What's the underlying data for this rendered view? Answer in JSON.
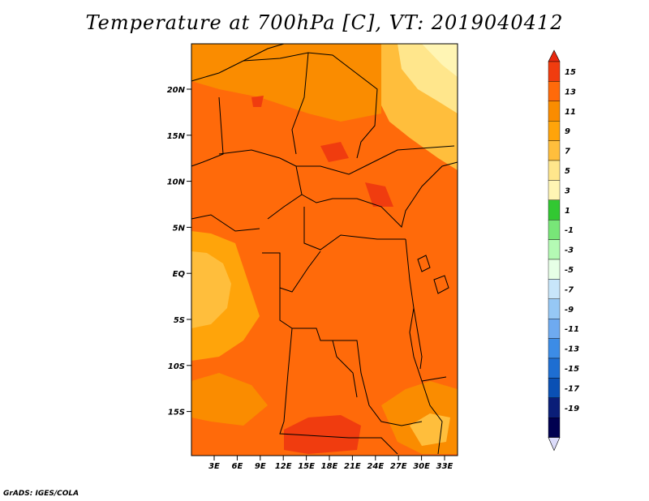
{
  "title": "Temperature at 700hPa [C], VT: 2019040412",
  "footer": "GrADS: IGES/COLA",
  "map": {
    "lat_ticks": [
      "20N",
      "15N",
      "10N",
      "5N",
      "EQ",
      "5S",
      "10S",
      "15S"
    ],
    "lon_ticks": [
      "3E",
      "6E",
      "9E",
      "12E",
      "15E",
      "18E",
      "21E",
      "24E",
      "27E",
      "30E",
      "33E"
    ]
  },
  "colorbar": {
    "labels": [
      "15",
      "13",
      "11",
      "9",
      "7",
      "5",
      "3",
      "1",
      "-1",
      "-3",
      "-5",
      "-7",
      "-9",
      "-11",
      "-13",
      "-15",
      "-17",
      "-19"
    ],
    "colors": [
      "#f03c0f",
      "#ff6a0a",
      "#fa8c00",
      "#ffa40a",
      "#ffbe3c",
      "#ffe68c",
      "#fff5b4",
      "#32c832",
      "#78e678",
      "#b4fab4",
      "#e6ffe6",
      "#c8e6fa",
      "#96c8f5",
      "#6eaaf0",
      "#3c8ce6",
      "#1e6ed2",
      "#0a50b4",
      "#0a1e78",
      "#000050",
      "#e0e0ff"
    ],
    "top_color": "#e8280f",
    "bottom_color": "#dcdcfa"
  },
  "colors": {
    "dominant": "#ff6a0a",
    "warm": "#fa8c00",
    "light": "#ffbe3c",
    "hot": "#f03c0f"
  }
}
